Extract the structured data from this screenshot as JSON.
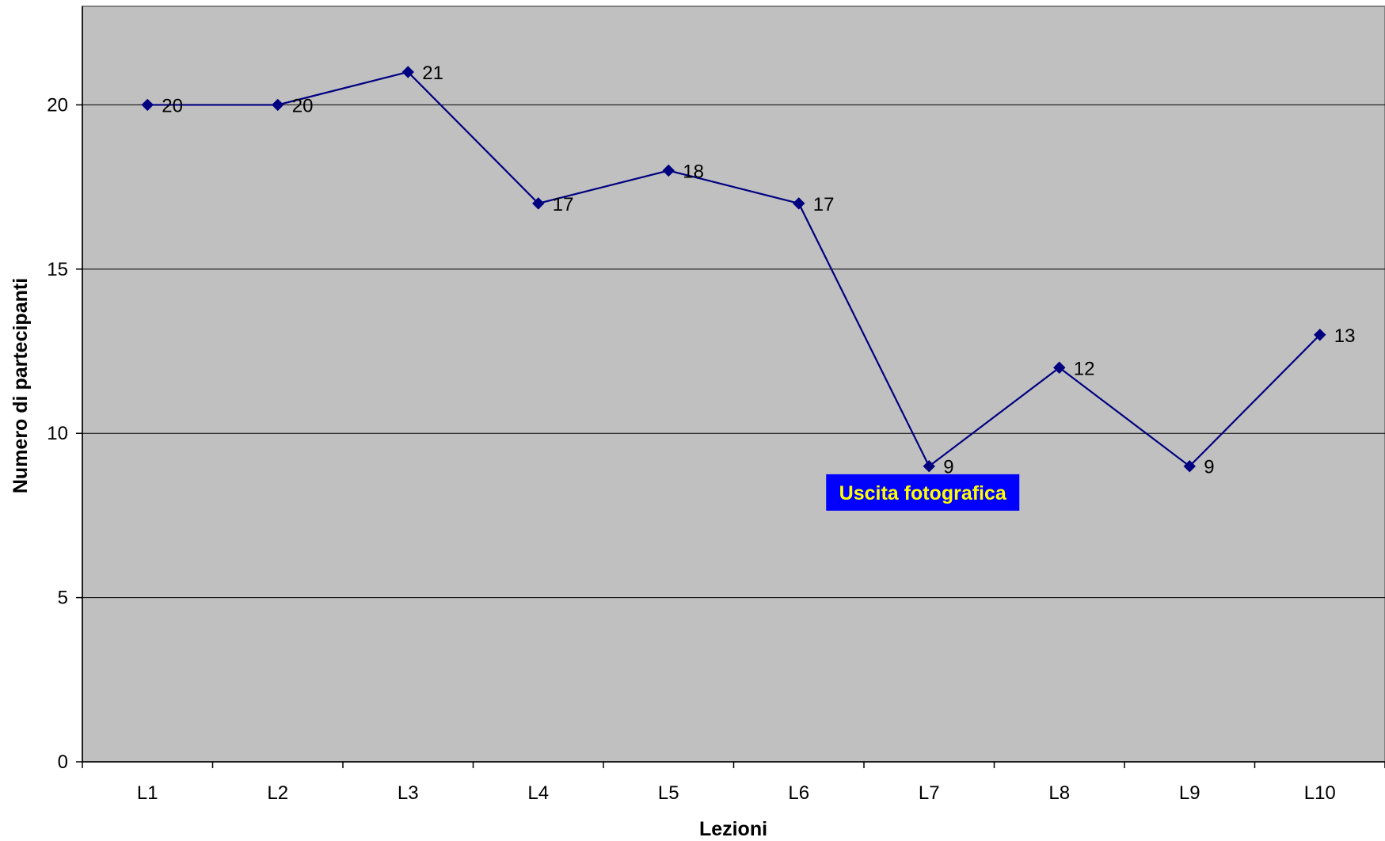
{
  "chart_data": {
    "type": "line",
    "title": "",
    "xlabel": "Lezioni",
    "ylabel": "Numero di partecipanti",
    "categories": [
      "L1",
      "L2",
      "L3",
      "L4",
      "L5",
      "L6",
      "L7",
      "L8",
      "L9",
      "L10"
    ],
    "series": [
      {
        "values": [
          20,
          20,
          21,
          17,
          18,
          17,
          9,
          12,
          9,
          13
        ],
        "color": "#000080",
        "marker": "diamond",
        "data_labels": [
          "20",
          "20",
          "21",
          "17",
          "18",
          "17",
          "9",
          "12",
          "9",
          "13"
        ]
      }
    ],
    "ylim": [
      0,
      23
    ],
    "yticks": [
      0,
      5,
      10,
      15,
      20
    ],
    "ytick_labels": [
      "0",
      "5",
      "10",
      "15",
      "20"
    ],
    "grid": true,
    "legend": "none",
    "plot_background": "#c0c0c0",
    "gridline_color": "#000000",
    "annotations": [
      {
        "text": "Uscita fotografica",
        "anchor_category": "L7",
        "background": "#0000ff",
        "text_color": "#ffff00"
      }
    ]
  }
}
